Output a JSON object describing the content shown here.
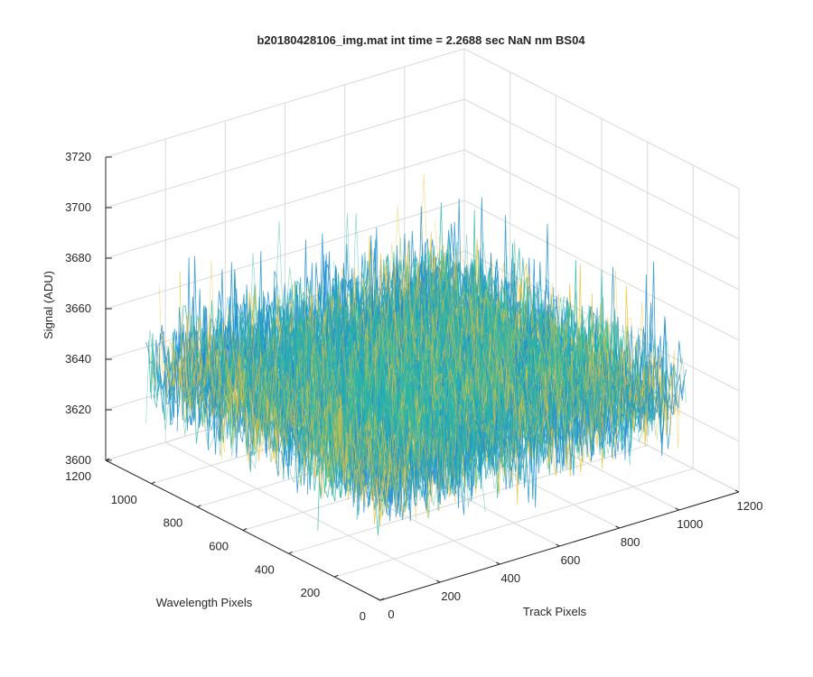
{
  "chart_data": {
    "type": "surface",
    "title": "b20180428106_img.mat int time = 2.2688 sec  NaN nm BS04",
    "xlabel": "Track Pixels",
    "ylabel": "Wavelength Pixels",
    "zlabel": "Signal (ADU)",
    "xlim": [
      0,
      1200
    ],
    "ylim": [
      0,
      1200
    ],
    "zlim": [
      3600,
      3720
    ],
    "x_ticks": [
      0,
      200,
      400,
      600,
      800,
      1000,
      1200
    ],
    "y_ticks": [
      0,
      200,
      400,
      600,
      800,
      1000,
      1200
    ],
    "z_ticks": [
      3600,
      3620,
      3640,
      3660,
      3680,
      3700,
      3720
    ],
    "x_tick_labels": [
      "0",
      "200",
      "400",
      "600",
      "800",
      "1000",
      "1200"
    ],
    "y_tick_labels": [
      "0",
      "200",
      "400",
      "600",
      "800",
      "1000",
      "1200"
    ],
    "z_tick_labels": [
      "3600",
      "3620",
      "3640",
      "3660",
      "3680",
      "3700",
      "3720"
    ],
    "surface_x_range": [
      0,
      1024
    ],
    "surface_y_range": [
      0,
      1024
    ],
    "signal_mean": 3645,
    "signal_noise_range": [
      3615,
      3710
    ],
    "grid": true,
    "colormap": "parula",
    "colors": {
      "surface_blue": "#1f8fd0",
      "surface_teal": "#2fb7a4",
      "surface_yellow": "#e9c23a",
      "grid": "#d9d9d9",
      "axis": "#262626"
    }
  }
}
